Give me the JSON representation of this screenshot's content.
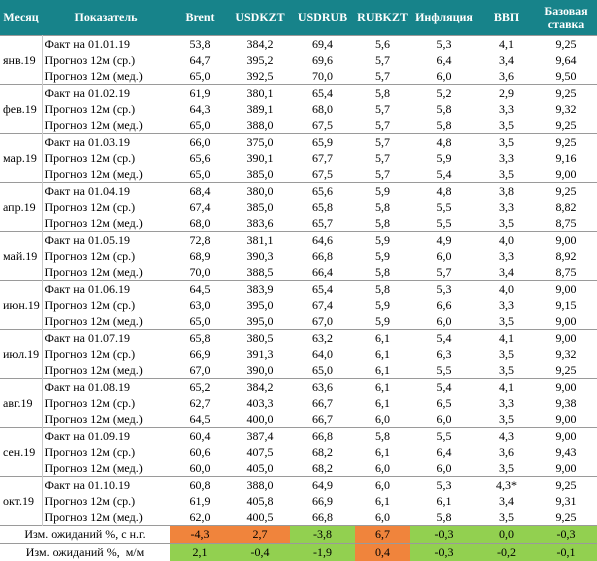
{
  "table": {
    "header": [
      "Месяц",
      "Показатель",
      "Brent",
      "USDKZT",
      "USDRUB",
      "RUBKZT",
      "Инфляция",
      "ВВП",
      "Базовая ставка"
    ],
    "groups": [
      {
        "month": "янв.19",
        "rows": [
          [
            "Факт на 01.01.19",
            "53,8",
            "384,2",
            "69,4",
            "5,6",
            "5,3",
            "4,1",
            "9,25"
          ],
          [
            "Прогноз 12м (ср.)",
            "64,7",
            "395,2",
            "69,6",
            "5,7",
            "6,4",
            "3,4",
            "9,64"
          ],
          [
            "Прогноз 12м (мед.)",
            "65,0",
            "392,5",
            "70,0",
            "5,7",
            "6,0",
            "3,6",
            "9,50"
          ]
        ]
      },
      {
        "month": "фев.19",
        "rows": [
          [
            "Факт на 01.02.19",
            "61,9",
            "380,1",
            "65,4",
            "5,8",
            "5,2",
            "2,9",
            "9,25"
          ],
          [
            "Прогноз 12м (ср.)",
            "64,3",
            "389,1",
            "68,0",
            "5,7",
            "5,8",
            "3,3",
            "9,32"
          ],
          [
            "Прогноз 12м (мед.)",
            "65,0",
            "388,0",
            "67,5",
            "5,7",
            "5,8",
            "3,5",
            "9,25"
          ]
        ]
      },
      {
        "month": "мар.19",
        "rows": [
          [
            "Факт на 01.03.19",
            "66,0",
            "375,0",
            "65,9",
            "5,7",
            "4,8",
            "3,5",
            "9,25"
          ],
          [
            "Прогноз 12м (ср.)",
            "65,6",
            "390,1",
            "67,7",
            "5,7",
            "5,9",
            "3,3",
            "9,16"
          ],
          [
            "Прогноз 12м (мед.)",
            "65,0",
            "385,0",
            "67,5",
            "5,7",
            "5,4",
            "3,5",
            "9,00"
          ]
        ]
      },
      {
        "month": "апр.19",
        "rows": [
          [
            "Факт на 01.04.19",
            "68,4",
            "380,0",
            "65,6",
            "5,9",
            "4,8",
            "3,8",
            "9,25"
          ],
          [
            "Прогноз 12м (ср.)",
            "67,4",
            "385,0",
            "65,8",
            "5,8",
            "5,5",
            "3,3",
            "8,82"
          ],
          [
            "Прогноз 12м (мед.)",
            "68,0",
            "383,6",
            "65,7",
            "5,8",
            "5,5",
            "3,5",
            "8,75"
          ]
        ]
      },
      {
        "month": "май.19",
        "rows": [
          [
            "Факт на 01.05.19",
            "72,8",
            "381,1",
            "64,6",
            "5,9",
            "4,9",
            "4,0",
            "9,00"
          ],
          [
            "Прогноз 12м (ср.)",
            "68,9",
            "390,3",
            "66,8",
            "5,9",
            "6,0",
            "3,3",
            "8,92"
          ],
          [
            "Прогноз 12м (мед.)",
            "70,0",
            "388,5",
            "66,4",
            "5,8",
            "5,7",
            "3,4",
            "8,75"
          ]
        ]
      },
      {
        "month": "июн.19",
        "rows": [
          [
            "Факт на 01.06.19",
            "64,5",
            "383,9",
            "65,4",
            "5,8",
            "5,3",
            "4,0",
            "9,00"
          ],
          [
            "Прогноз 12м (ср.)",
            "63,0",
            "395,0",
            "67,4",
            "5,9",
            "6,6",
            "3,3",
            "9,15"
          ],
          [
            "Прогноз 12м (мед.)",
            "65,0",
            "395,0",
            "67,0",
            "5,9",
            "6,0",
            "3,5",
            "9,00"
          ]
        ]
      },
      {
        "month": "июл.19",
        "rows": [
          [
            "Факт на 01.07.19",
            "65,8",
            "380,5",
            "63,2",
            "6,1",
            "5,4",
            "4,1",
            "9,00"
          ],
          [
            "Прогноз 12м (ср.)",
            "66,9",
            "391,3",
            "64,0",
            "6,1",
            "6,3",
            "3,5",
            "9,32"
          ],
          [
            "Прогноз 12м (мед.)",
            "67,0",
            "390,0",
            "65,0",
            "6,1",
            "5,5",
            "3,5",
            "9,25"
          ]
        ]
      },
      {
        "month": "авг.19",
        "rows": [
          [
            "Факт на 01.08.19",
            "65,2",
            "384,2",
            "63,6",
            "6,1",
            "5,4",
            "4,1",
            "9,00"
          ],
          [
            "Прогноз 12м (ср.)",
            "62,7",
            "403,3",
            "66,7",
            "6,1",
            "6,5",
            "3,3",
            "9,38"
          ],
          [
            "Прогноз 12м (мед.)",
            "64,5",
            "400,0",
            "66,7",
            "6,0",
            "6,0",
            "3,5",
            "9,00"
          ]
        ]
      },
      {
        "month": "сен.19",
        "rows": [
          [
            "Факт на 01.09.19",
            "60,4",
            "387,4",
            "66,8",
            "5,8",
            "5,5",
            "4,3",
            "9,00"
          ],
          [
            "Прогноз 12м (ср.)",
            "60,6",
            "407,5",
            "68,2",
            "6,1",
            "6,4",
            "3,6",
            "9,43"
          ],
          [
            "Прогноз 12м (мед.)",
            "60,0",
            "405,0",
            "68,2",
            "6,0",
            "6,0",
            "3,5",
            "9,00"
          ]
        ]
      },
      {
        "month": "окт.19",
        "rows": [
          [
            "Факт на 01.10.19",
            "60,8",
            "388,0",
            "64,9",
            "6,0",
            "5,3",
            "4,3*",
            "9,25"
          ],
          [
            "Прогноз 12м (ср.)",
            "61,9",
            "405,8",
            "66,9",
            "6,1",
            "6,1",
            "3,4",
            "9,31"
          ],
          [
            "Прогноз 12м (мед.)",
            "62,0",
            "400,5",
            "66,8",
            "6,0",
            "5,8",
            "3,5",
            "9,25"
          ]
        ]
      }
    ],
    "summary": [
      {
        "label": "Изм. ожиданий %, с н.г.",
        "cells": [
          "-4,3",
          "2,7",
          "-3,8",
          "6,7",
          "-0,3",
          "0,0",
          "-0,3"
        ],
        "colors": [
          "#f0843c",
          "#f0843c",
          "#92d050",
          "#f0843c",
          "#92d050",
          "#92d050",
          "#92d050"
        ]
      },
      {
        "label": "Изм. ожиданий %,  м/м",
        "cells": [
          "2,1",
          "-0,4",
          "-1,9",
          "0,4",
          "-0,3",
          "-0,2",
          "-0,1"
        ],
        "colors": [
          "#92d050",
          "#92d050",
          "#92d050",
          "#f0843c",
          "#92d050",
          "#92d050",
          "#92d050"
        ]
      }
    ]
  }
}
